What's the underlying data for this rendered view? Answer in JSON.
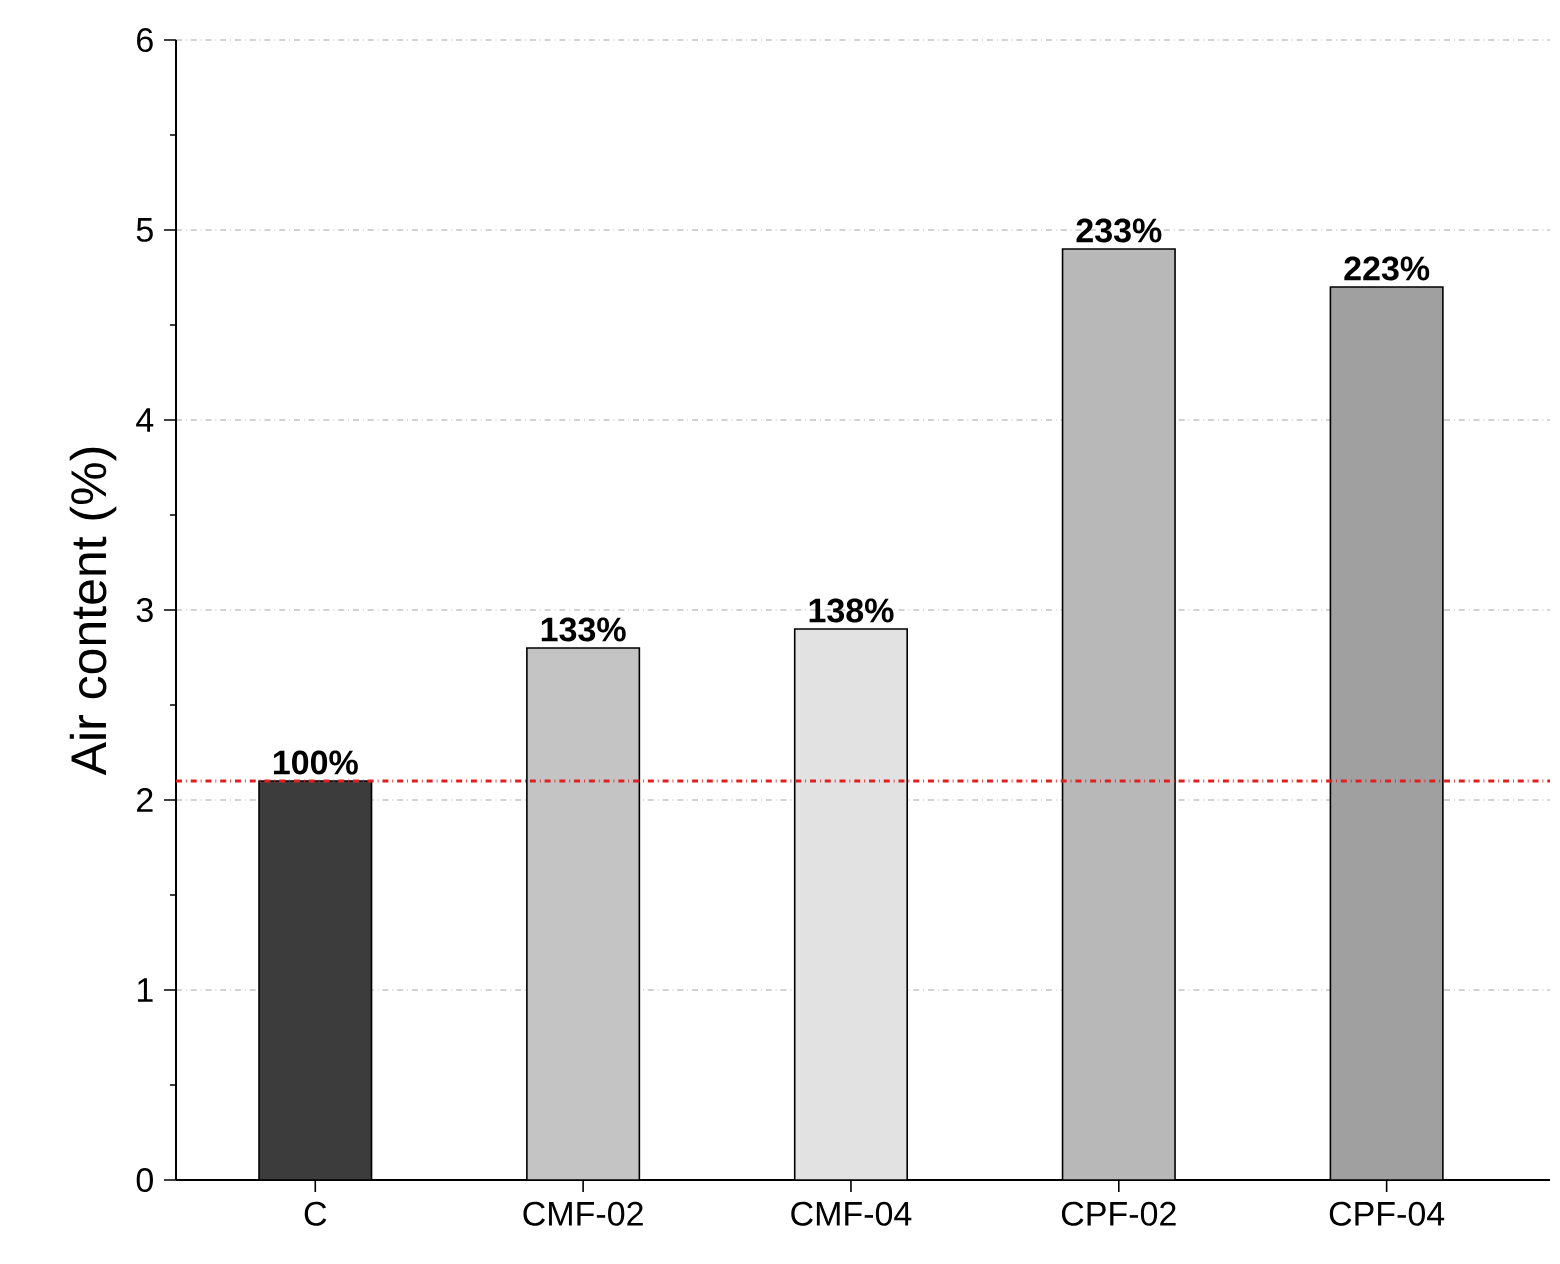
{
  "chart_data": {
    "type": "bar",
    "ylabel": "Air content (%)",
    "categories": [
      "C",
      "CMF-02",
      "CMF-04",
      "CPF-02",
      "CPF-04"
    ],
    "values": [
      2.1,
      2.8,
      2.9,
      4.9,
      4.7
    ],
    "annotations": [
      {
        "text": "100%",
        "x": "C",
        "y": 2.1
      },
      {
        "text": "133%",
        "x": "CMF-02",
        "y": 2.8
      },
      {
        "text": "138%",
        "x": "CMF-04",
        "y": 2.9
      },
      {
        "text": "233%",
        "x": "CPF-02",
        "y": 4.9
      },
      {
        "text": "223%",
        "x": "CPF-04",
        "y": 4.7
      }
    ],
    "colors": [
      "#3c3c3c",
      "#c4c4c4",
      "#e2e2e2",
      "#b8b8b8",
      "#a0a0a0"
    ],
    "ylim": [
      0,
      6
    ],
    "yticks": [
      0,
      1,
      2,
      3,
      4,
      5,
      6
    ],
    "grid": "y",
    "ref_lines": [
      {
        "axis": "y",
        "value": 2.1,
        "color": "#e02020",
        "line_style": "dashdot"
      }
    ]
  }
}
